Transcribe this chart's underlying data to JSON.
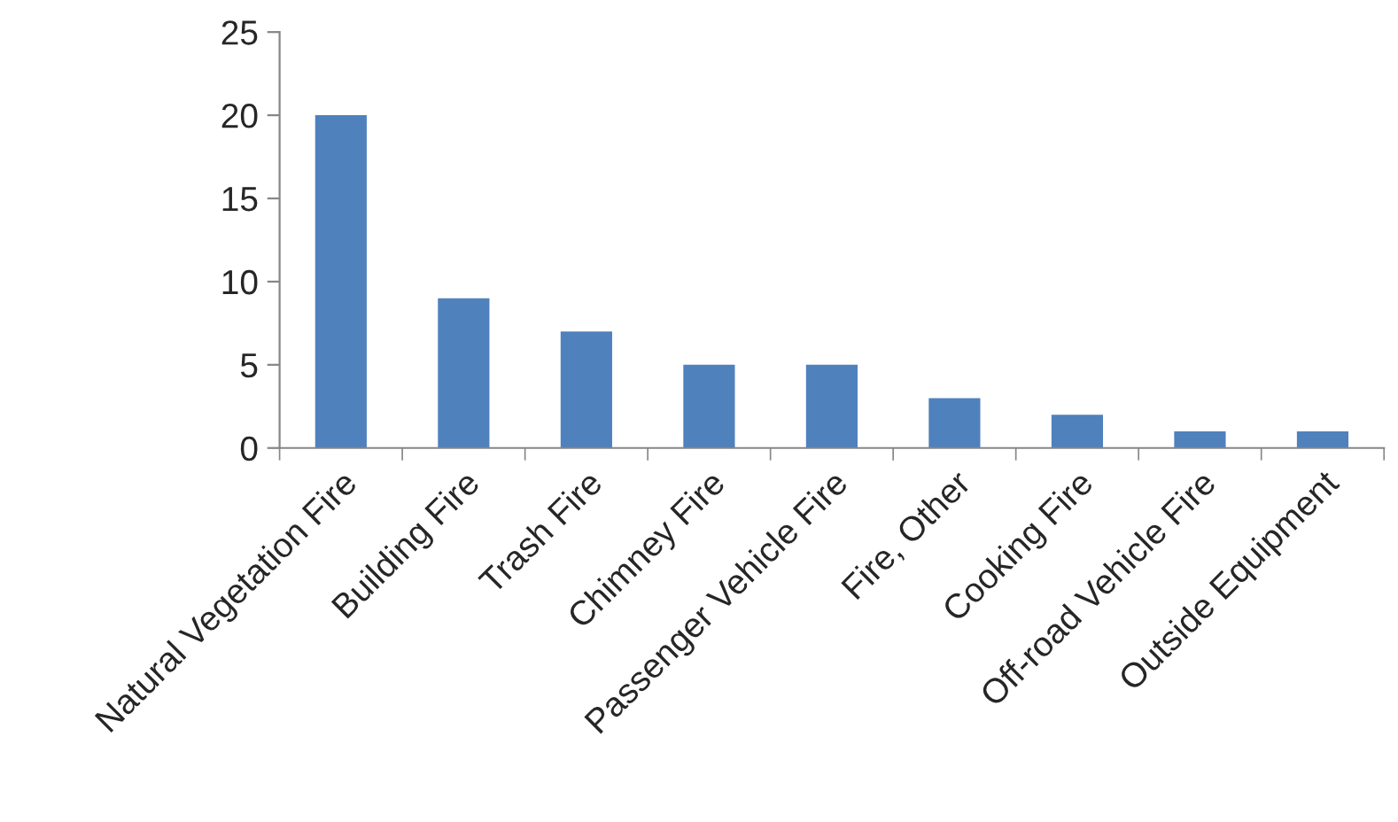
{
  "chart_data": {
    "type": "bar",
    "categories": [
      "Natural Vegetation Fire",
      "Building Fire",
      "Trash Fire",
      "Chimney Fire",
      "Passenger Vehicle Fire",
      "Fire, Other",
      "Cooking Fire",
      "Off-road Vehicle Fire",
      "Outside Equipment"
    ],
    "values": [
      20,
      9,
      7,
      5,
      5,
      3,
      2,
      1,
      1
    ],
    "color": "#4f81bd",
    "ylim": [
      0,
      25
    ],
    "yticks": [
      0,
      5,
      10,
      15,
      20,
      25
    ],
    "grid": false,
    "legend": false
  }
}
